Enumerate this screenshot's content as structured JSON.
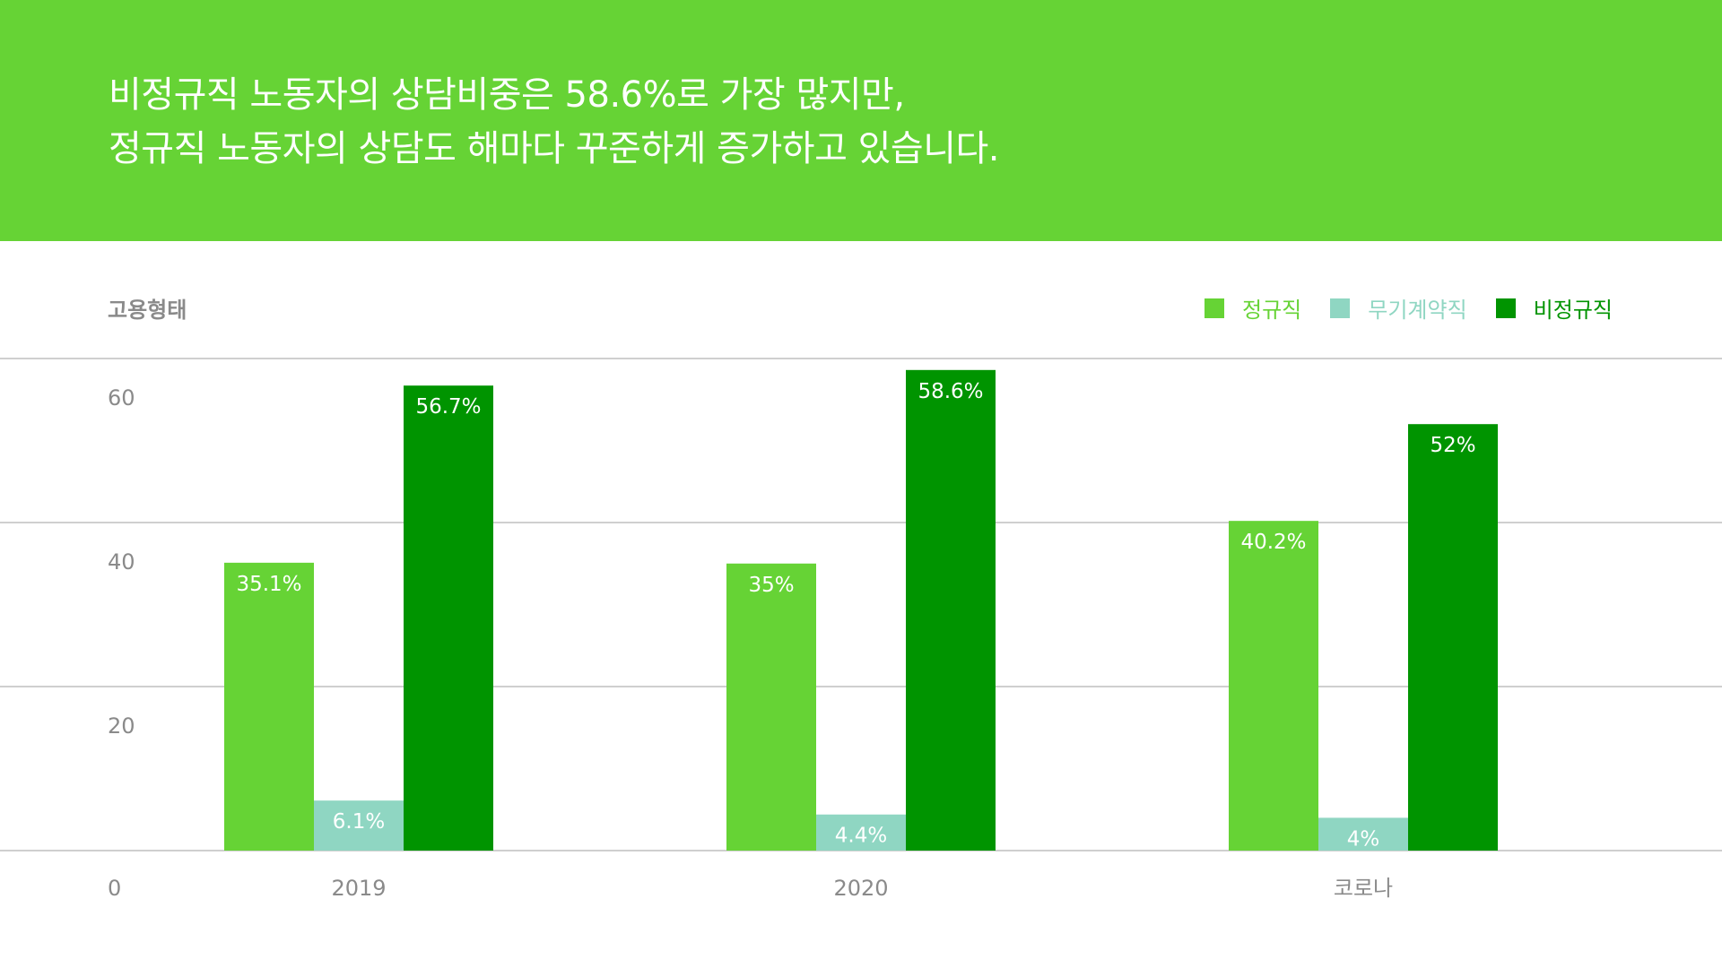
{
  "headline": {
    "line1": "비정규직 노동자의 상담비중은 58.6%로 가장 많지만,",
    "line2": "정규직 노동자의 상담도 해마다 꾸준하게 증가하고 있습니다."
  },
  "colors": {
    "header_bg": "#66d335",
    "regular": "#66d335",
    "indefinite": "#8fd6c2",
    "nonregular": "#009400",
    "axis_text": "#8a8a8a",
    "grid": "#cfcfcf"
  },
  "chart_data": {
    "type": "bar",
    "ylabel": "고용형태",
    "categories": [
      "2019",
      "2020",
      "코로나"
    ],
    "series": [
      {
        "name": "정규직",
        "values": [
          35.1,
          35,
          40.2
        ],
        "labels": [
          "35.1%",
          "35%",
          "40.2%"
        ]
      },
      {
        "name": "무기계약직",
        "values": [
          6.1,
          4.4,
          4
        ],
        "labels": [
          "6.1%",
          "4.4%",
          "4%"
        ]
      },
      {
        "name": "비정규직",
        "values": [
          56.7,
          58.6,
          52
        ],
        "labels": [
          "56.7%",
          "58.6%",
          "52%"
        ]
      }
    ],
    "ylim": [
      0,
      60
    ],
    "yticks": [
      0,
      20,
      40,
      60
    ],
    "grid": true,
    "legend_position": "top-right"
  }
}
